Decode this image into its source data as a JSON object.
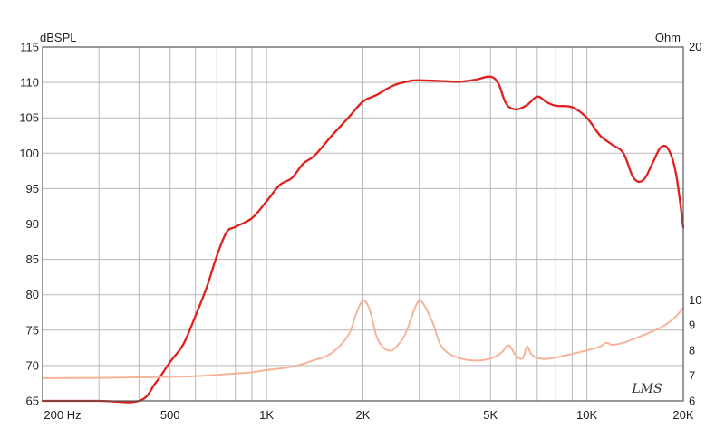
{
  "chart_data": {
    "type": "line",
    "ylabel_left": "dBSPL",
    "ylabel_right": "Ohm",
    "x_scale": "log",
    "xlim": [
      200,
      20000
    ],
    "ylim_left": [
      65,
      115
    ],
    "ylim_right": [
      6,
      20
    ],
    "grid": true,
    "legend": "none",
    "x_ticks": [
      {
        "value": 200,
        "label": "200  Hz"
      },
      {
        "value": 500,
        "label": "500"
      },
      {
        "value": 1000,
        "label": "1K"
      },
      {
        "value": 2000,
        "label": "2K"
      },
      {
        "value": 5000,
        "label": "5K"
      },
      {
        "value": 10000,
        "label": "10K"
      },
      {
        "value": 20000,
        "label": "20K"
      }
    ],
    "x_gridlines": [
      200,
      300,
      400,
      500,
      600,
      700,
      800,
      900,
      1000,
      2000,
      3000,
      4000,
      5000,
      6000,
      7000,
      8000,
      9000,
      10000,
      20000
    ],
    "y_left_ticks": [
      65,
      70,
      75,
      80,
      85,
      90,
      95,
      100,
      105,
      110,
      115
    ],
    "y_right_ticks": [
      {
        "value": 6,
        "label": "6"
      },
      {
        "value": 7,
        "label": "7"
      },
      {
        "value": 8,
        "label": "8"
      },
      {
        "value": 9,
        "label": "9"
      },
      {
        "value": 10,
        "label": "10"
      },
      {
        "value": 20,
        "label": "20"
      }
    ],
    "logo_text": "LMS",
    "series": [
      {
        "axis": "left",
        "color": "#e0201c",
        "x": [
          200,
          300,
          400,
          450,
          500,
          550,
          600,
          650,
          700,
          750,
          800,
          900,
          1000,
          1100,
          1200,
          1300,
          1400,
          1500,
          1600,
          1800,
          2000,
          2200,
          2500,
          2800,
          3000,
          3500,
          4000,
          4500,
          5000,
          5300,
          5600,
          6000,
          6500,
          7000,
          7500,
          8000,
          9000,
          10000,
          11000,
          12000,
          13000,
          14000,
          15000,
          16000,
          17000,
          18000,
          19000,
          20000
        ],
        "values": [
          65,
          65,
          65,
          67.5,
          70.5,
          73,
          77,
          81,
          85.5,
          88.8,
          89.6,
          90.8,
          93.2,
          95.5,
          96.5,
          98.5,
          99.5,
          101,
          102.5,
          105,
          107.3,
          108.2,
          109.6,
          110.2,
          110.3,
          110.2,
          110.1,
          110.4,
          110.8,
          109.8,
          107,
          106.2,
          106.8,
          108,
          107.2,
          106.7,
          106.5,
          105,
          102.5,
          101.2,
          100,
          96.5,
          96.2,
          98.5,
          100.8,
          100.5,
          97,
          89.5
        ]
      },
      {
        "axis": "right",
        "color": "#f4b49a",
        "x": [
          200,
          300,
          400,
          500,
          600,
          700,
          800,
          900,
          1000,
          1200,
          1400,
          1600,
          1800,
          1900,
          2000,
          2100,
          2200,
          2300,
          2400,
          2500,
          2700,
          2900,
          3000,
          3100,
          3300,
          3500,
          3800,
          4200,
          4600,
          5000,
          5400,
          5700,
          6000,
          6300,
          6500,
          6700,
          7000,
          7500,
          8000,
          9000,
          10000,
          11000,
          11500,
          12000,
          13000,
          14000,
          15000,
          16000,
          17000,
          18000,
          19000,
          20000
        ],
        "values": [
          6.9,
          6.91,
          6.93,
          6.95,
          6.98,
          7.03,
          7.08,
          7.13,
          7.22,
          7.35,
          7.6,
          7.9,
          8.6,
          9.4,
          9.96,
          9.6,
          8.6,
          8.15,
          8.0,
          8.05,
          8.6,
          9.65,
          9.96,
          9.8,
          9.1,
          8.2,
          7.8,
          7.63,
          7.6,
          7.68,
          7.9,
          8.2,
          7.8,
          7.68,
          8.15,
          7.86,
          7.7,
          7.66,
          7.72,
          7.86,
          8.0,
          8.15,
          8.3,
          8.22,
          8.3,
          8.45,
          8.6,
          8.75,
          8.9,
          9.1,
          9.35,
          9.68
        ]
      }
    ]
  }
}
